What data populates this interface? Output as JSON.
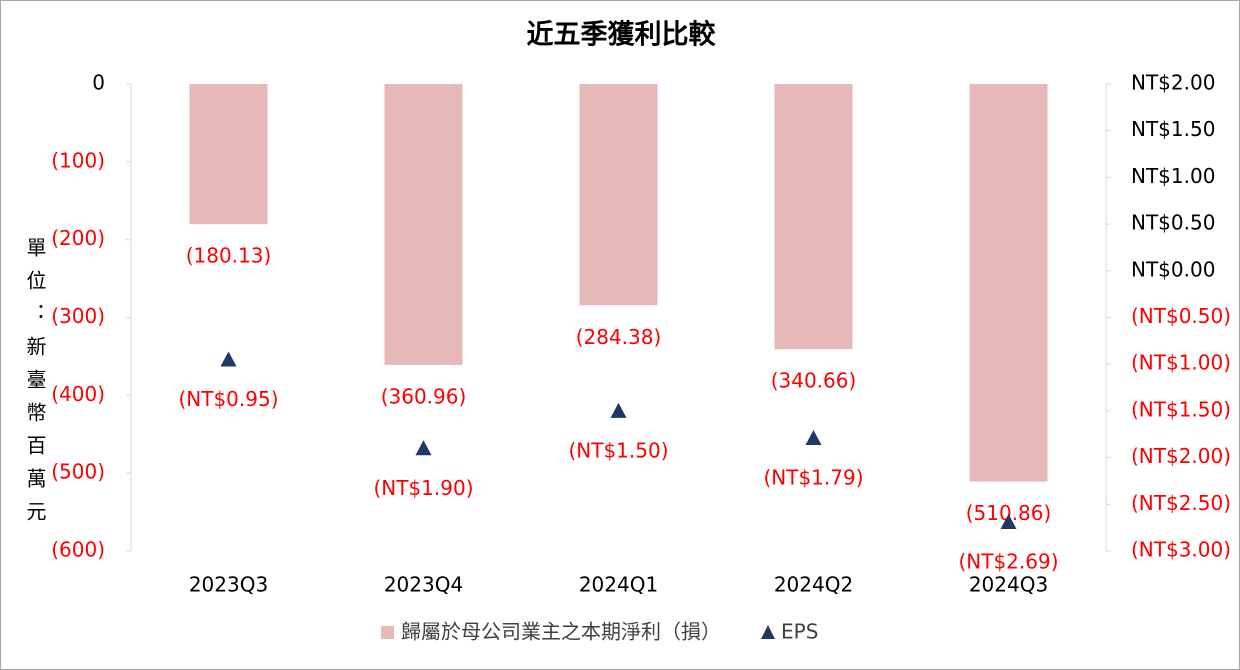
{
  "chart_data": {
    "type": "bar",
    "title": "近五季獲利比較",
    "y_label": "單位：新臺幣百萬元",
    "categories": [
      "2023Q3",
      "2023Q4",
      "2024Q1",
      "2024Q2",
      "2024Q3"
    ],
    "series": [
      {
        "name": "歸屬於母公司業主之本期淨利（損）",
        "type": "bar",
        "color": "#e6b8b7",
        "values": [
          -180.13,
          -360.96,
          -284.38,
          -340.66,
          -510.86
        ],
        "value_labels": [
          "(180.13)",
          "(360.96)",
          "(284.38)",
          "(340.66)",
          "(510.86)"
        ]
      },
      {
        "name": "EPS",
        "type": "scatter",
        "axis": "y2",
        "color": "#1f3864",
        "values": [
          -0.95,
          -1.9,
          -1.5,
          -1.79,
          -2.69
        ],
        "value_labels": [
          "(NT$0.95)",
          "(NT$1.90)",
          "(NT$1.50)",
          "(NT$1.79)",
          "(NT$2.69)"
        ]
      }
    ],
    "ylim": [
      -600,
      0
    ],
    "yticks": [
      {
        "value": 0,
        "label": "0"
      },
      {
        "value": -100,
        "label": "(100)"
      },
      {
        "value": -200,
        "label": "(200)"
      },
      {
        "value": -300,
        "label": "(300)"
      },
      {
        "value": -400,
        "label": "(400)"
      },
      {
        "value": -500,
        "label": "(500)"
      },
      {
        "value": -600,
        "label": "(600)"
      }
    ],
    "y2lim": [
      -3,
      2
    ],
    "y2ticks": [
      {
        "value": 2,
        "label": "NT$2.00"
      },
      {
        "value": 1.5,
        "label": "NT$1.50"
      },
      {
        "value": 1,
        "label": "NT$1.00"
      },
      {
        "value": 0.5,
        "label": "NT$0.50"
      },
      {
        "value": 0,
        "label": "NT$0.00"
      },
      {
        "value": -0.5,
        "label": "(NT$0.50)"
      },
      {
        "value": -1,
        "label": "(NT$1.00)"
      },
      {
        "value": -1.5,
        "label": "(NT$1.50)"
      },
      {
        "value": -2,
        "label": "(NT$2.00)"
      },
      {
        "value": -2.5,
        "label": "(NT$2.50)"
      },
      {
        "value": -3,
        "label": "(NT$3.00)"
      }
    ],
    "negative_color": "#ff0000",
    "label_color": "#000000",
    "grid": false,
    "legend": "bottom"
  }
}
